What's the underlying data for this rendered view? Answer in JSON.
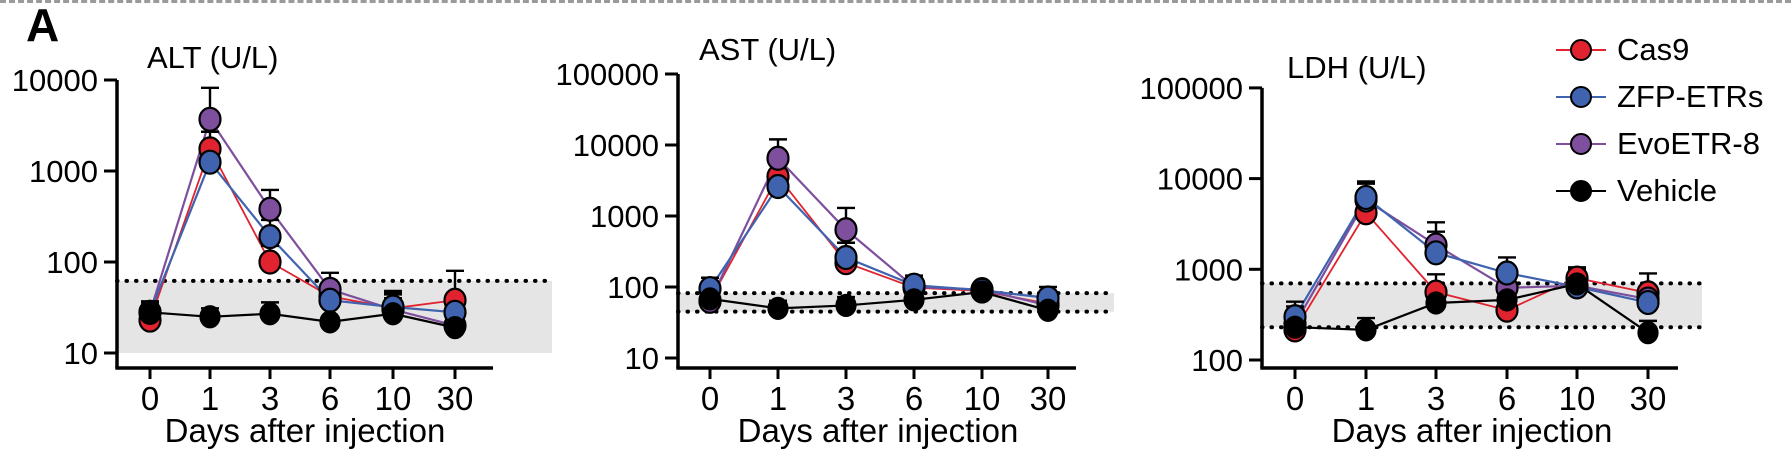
{
  "figure": {
    "panel_label": "A"
  },
  "colors": {
    "cas9": "#e0232e",
    "zfp_etrs": "#3f63ae",
    "evoetr8": "#7e4f9d",
    "vehicle": "#000000",
    "normal_band": "#e5e5e5",
    "dotted_line": "#000000",
    "axis": "#000000"
  },
  "legend": {
    "items": [
      {
        "label": "Cas9",
        "color": "#e0232e"
      },
      {
        "label": "ZFP-ETRs",
        "color": "#3f63ae"
      },
      {
        "label": "EvoETR-8",
        "color": "#7e4f9d"
      },
      {
        "label": "Vehicle",
        "color": "#000000"
      }
    ]
  },
  "chart_data": [
    {
      "type": "line",
      "title": "ALT (U/L)",
      "xlabel": "Days after injection",
      "x_categories": [
        "0",
        "1",
        "3",
        "6",
        "10",
        "30"
      ],
      "yscale": "log",
      "ylim": [
        10,
        10000
      ],
      "yticks": [
        10,
        100,
        1000,
        10000
      ],
      "normal_band": {
        "low": 10,
        "high": 62,
        "dotted_lines": [
          62
        ]
      },
      "series": [
        {
          "name": "Cas9",
          "color": "#e0232e",
          "values": [
            23,
            1750,
            100,
            42,
            31,
            38
          ],
          "err_up": [
            36,
            2700,
            150,
            null,
            44,
            80
          ]
        },
        {
          "name": "ZFP-ETRs",
          "color": "#3f63ae",
          "values": [
            28,
            1250,
            190,
            38,
            32,
            28
          ],
          "err_up": [
            36,
            2100,
            290,
            58,
            46,
            null
          ]
        },
        {
          "name": "EvoETR-8",
          "color": "#7e4f9d",
          "values": [
            28,
            3700,
            380,
            50,
            30,
            20
          ],
          "err_up": [
            36,
            8200,
            620,
            76,
            48,
            null
          ]
        },
        {
          "name": "Vehicle",
          "color": "#000000",
          "values": [
            28,
            25,
            27,
            22,
            27,
            19
          ],
          "err_up": [
            37,
            31,
            36,
            null,
            40,
            null
          ]
        }
      ]
    },
    {
      "type": "line",
      "title": "AST (U/L)",
      "xlabel": "Days after injection",
      "x_categories": [
        "0",
        "1",
        "3",
        "6",
        "10",
        "30"
      ],
      "yscale": "log",
      "ylim": [
        10,
        100000
      ],
      "yticks": [
        10,
        100,
        1000,
        10000,
        100000
      ],
      "normal_band": {
        "low": 45,
        "high": 82,
        "dotted_lines": [
          82,
          45
        ]
      },
      "series": [
        {
          "name": "Cas9",
          "color": "#e0232e",
          "values": [
            65,
            3600,
            220,
            98,
            88,
            58
          ],
          "err_up": [
            null,
            6200,
            330,
            null,
            null,
            null
          ]
        },
        {
          "name": "ZFP-ETRs",
          "color": "#3f63ae",
          "values": [
            95,
            2600,
            260,
            106,
            90,
            70
          ],
          "err_up": [
            135,
            4300,
            420,
            145,
            112,
            100
          ]
        },
        {
          "name": "EvoETR-8",
          "color": "#7e4f9d",
          "values": [
            63,
            6500,
            640,
            100,
            92,
            55
          ],
          "err_up": [
            92,
            12000,
            1300,
            null,
            112,
            null
          ]
        },
        {
          "name": "Vehicle",
          "color": "#000000",
          "values": [
            68,
            50,
            55,
            66,
            85,
            47
          ],
          "err_up": [
            88,
            64,
            72,
            84,
            null,
            60
          ]
        }
      ]
    },
    {
      "type": "line",
      "title": "LDH (U/L)",
      "xlabel": "Days after injection",
      "x_categories": [
        "0",
        "1",
        "3",
        "6",
        "10",
        "30"
      ],
      "yscale": "log",
      "ylim": [
        100,
        100000
      ],
      "yticks": [
        100,
        1000,
        10000,
        100000
      ],
      "normal_band": {
        "low": 230,
        "high": 700,
        "dotted_lines": [
          700,
          230
        ]
      },
      "series": [
        {
          "name": "Cas9",
          "color": "#e0232e",
          "values": [
            215,
            4200,
            560,
            355,
            800,
            550
          ],
          "err_up": [
            null,
            6500,
            880,
            null,
            1050,
            900
          ]
        },
        {
          "name": "ZFP-ETRs",
          "color": "#3f63ae",
          "values": [
            300,
            6200,
            1520,
            910,
            640,
            430
          ],
          "err_up": [
            440,
            9300,
            2600,
            1350,
            1000,
            650
          ]
        },
        {
          "name": "EvoETR-8",
          "color": "#7e4f9d",
          "values": [
            250,
            5800,
            1850,
            625,
            660,
            470
          ],
          "err_up": [
            390,
            8800,
            3300,
            900,
            1000,
            null
          ]
        },
        {
          "name": "Vehicle",
          "color": "#000000",
          "values": [
            230,
            215,
            425,
            460,
            690,
            200
          ],
          "err_up": [
            310,
            290,
            530,
            570,
            null,
            270
          ]
        }
      ]
    }
  ]
}
